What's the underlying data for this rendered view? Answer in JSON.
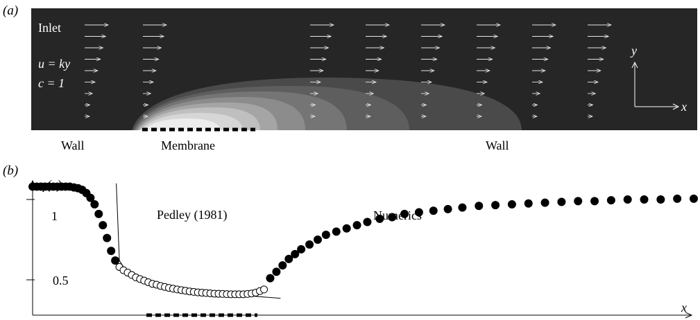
{
  "panel_a": {
    "label": "(a)",
    "inlet_label": "Inlet",
    "velocity_label": "u = ky",
    "concentration_label": "c = 1",
    "axis_y": "y",
    "axis_x": "x",
    "bottom_labels": {
      "wall_left": "Wall",
      "membrane": "Membrane",
      "wall_right": "Wall"
    },
    "colors": {
      "background": "#262626",
      "arrow": "#e6e6e6",
      "membrane": "#000000"
    }
  },
  "chart_data": {
    "type": "scatter",
    "label": "(b)",
    "ylabel": "γ(x)",
    "xlabel": "x",
    "yticks": [
      "1",
      "0.5"
    ],
    "annotations": [
      "Pedley (1981)",
      "Numerics"
    ],
    "series": [
      {
        "name": "Numerics",
        "marker": "filled-circle",
        "x": [
          0.0,
          0.02,
          0.04,
          0.06,
          0.08,
          0.1,
          0.12,
          0.14,
          0.16,
          0.18,
          0.2,
          0.22,
          0.24,
          0.26,
          0.28,
          0.3,
          0.32,
          0.34,
          0.36,
          0.38,
          0.4,
          1.15,
          1.18,
          1.21,
          1.24,
          1.27,
          1.3,
          1.34,
          1.38,
          1.42,
          1.47,
          1.52,
          1.57,
          1.62,
          1.68,
          1.74,
          1.8,
          1.87,
          1.94,
          2.01,
          2.08,
          2.16,
          2.24,
          2.32,
          2.4,
          2.48,
          2.56,
          2.64,
          2.72,
          2.8,
          2.88,
          2.96,
          3.04,
          3.12,
          3.2
        ],
        "y": [
          1.08,
          1.08,
          1.08,
          1.08,
          1.08,
          1.08,
          1.08,
          1.08,
          1.08,
          1.08,
          1.075,
          1.07,
          1.06,
          1.04,
          1.01,
          0.97,
          0.91,
          0.84,
          0.76,
          0.68,
          0.62,
          0.51,
          0.55,
          0.59,
          0.63,
          0.66,
          0.69,
          0.72,
          0.75,
          0.78,
          0.8,
          0.82,
          0.84,
          0.86,
          0.88,
          0.89,
          0.91,
          0.92,
          0.93,
          0.94,
          0.95,
          0.96,
          0.965,
          0.97,
          0.975,
          0.98,
          0.985,
          0.99,
          0.99,
          0.995,
          1.0,
          1.0,
          1.0,
          1.005,
          1.005
        ]
      },
      {
        "name": "Pedley (1981)",
        "marker": "open-circle",
        "x": [
          0.42,
          0.44,
          0.46,
          0.48,
          0.5,
          0.52,
          0.54,
          0.56,
          0.58,
          0.6,
          0.62,
          0.64,
          0.66,
          0.68,
          0.7,
          0.72,
          0.74,
          0.76,
          0.78,
          0.8,
          0.82,
          0.84,
          0.86,
          0.88,
          0.9,
          0.92,
          0.94,
          0.96,
          0.98,
          1.0,
          1.02,
          1.04,
          1.06,
          1.08,
          1.1,
          1.12
        ],
        "y": [
          0.58,
          0.56,
          0.545,
          0.53,
          0.515,
          0.505,
          0.495,
          0.485,
          0.475,
          0.47,
          0.462,
          0.456,
          0.45,
          0.445,
          0.44,
          0.436,
          0.432,
          0.428,
          0.425,
          0.422,
          0.42,
          0.418,
          0.416,
          0.414,
          0.413,
          0.412,
          0.411,
          0.41,
          0.41,
          0.41,
          0.41,
          0.412,
          0.415,
          0.42,
          0.43,
          0.44
        ]
      }
    ],
    "pedley_curve": {
      "x": [
        0.405,
        0.42,
        0.45,
        0.5,
        0.55,
        0.6,
        0.7,
        0.8,
        0.9,
        1.0,
        1.1,
        1.2
      ],
      "y": [
        1.1,
        0.62,
        0.56,
        0.52,
        0.49,
        0.47,
        0.445,
        0.43,
        0.415,
        0.405,
        0.395,
        0.385
      ]
    },
    "membrane_range": [
      0.43,
      1.06
    ]
  }
}
